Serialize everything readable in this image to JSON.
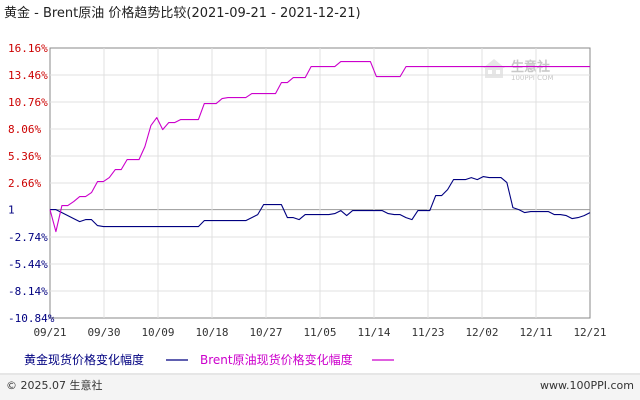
{
  "title": "黄金 - Brent原油 价格趋势比较(2021-09-21 - 2021-12-21)",
  "footer": {
    "copyright": "© 2025.07 生意社",
    "url": "www.100PPI.com"
  },
  "watermark": {
    "name": "生意社",
    "url": "100PPI.COM"
  },
  "colors": {
    "gold": "#000080",
    "brent": "#cc00cc",
    "zero_line": "#999999",
    "grid": "#e0e0e0",
    "frame": "#888888",
    "tick_red": "#cc0000",
    "tick_blue": "#000080"
  },
  "chart_data": {
    "type": "line",
    "title": "黄金 - Brent原油 价格趋势比较(2021-09-21 - 2021-12-21)",
    "ylim": [
      -10.84,
      16.16
    ],
    "y_ticks": [
      {
        "value": 16.16,
        "label": "16.16%"
      },
      {
        "value": 13.46,
        "label": "13.46%"
      },
      {
        "value": 10.76,
        "label": "10.76%"
      },
      {
        "value": 8.06,
        "label": "8.06%"
      },
      {
        "value": 5.36,
        "label": "5.36%"
      },
      {
        "value": 2.66,
        "label": "2.66%"
      },
      {
        "value": 0,
        "label": "1"
      },
      {
        "value": -2.74,
        "label": "-2.74%"
      },
      {
        "value": -5.44,
        "label": "-5.44%"
      },
      {
        "value": -8.14,
        "label": "-8.14%"
      },
      {
        "value": -10.84,
        "label": "-10.84%"
      }
    ],
    "x_ticks": [
      "09/21",
      "09/30",
      "10/09",
      "10/18",
      "10/27",
      "11/05",
      "11/14",
      "11/23",
      "12/02",
      "12/11",
      "12/21"
    ],
    "x_range": [
      0,
      91
    ],
    "grid": true,
    "legend_position": "bottom",
    "series": [
      {
        "name": "黄金现货价格变化幅度",
        "color": "#000080",
        "points": [
          [
            0,
            0.0
          ],
          [
            1,
            0.0
          ],
          [
            2,
            -0.3
          ],
          [
            3,
            -0.6
          ],
          [
            4,
            -0.9
          ],
          [
            5,
            -1.2
          ],
          [
            6,
            -1.0
          ],
          [
            7,
            -1.0
          ],
          [
            8,
            -1.6
          ],
          [
            9,
            -1.7
          ],
          [
            10,
            -1.7
          ],
          [
            11,
            -1.7
          ],
          [
            12,
            -1.7
          ],
          [
            13,
            -1.7
          ],
          [
            14,
            -1.7
          ],
          [
            15,
            -1.7
          ],
          [
            16,
            -1.7
          ],
          [
            17,
            -1.7
          ],
          [
            18,
            -1.7
          ],
          [
            19,
            -1.7
          ],
          [
            20,
            -1.7
          ],
          [
            21,
            -1.7
          ],
          [
            22,
            -1.7
          ],
          [
            23,
            -1.7
          ],
          [
            24,
            -1.7
          ],
          [
            25,
            -1.7
          ],
          [
            26,
            -1.1
          ],
          [
            27,
            -1.1
          ],
          [
            28,
            -1.1
          ],
          [
            29,
            -1.1
          ],
          [
            30,
            -1.1
          ],
          [
            31,
            -1.1
          ],
          [
            32,
            -1.1
          ],
          [
            33,
            -1.1
          ],
          [
            34,
            -0.8
          ],
          [
            35,
            -0.5
          ],
          [
            36,
            0.5
          ],
          [
            37,
            0.5
          ],
          [
            38,
            0.5
          ],
          [
            39,
            0.5
          ],
          [
            40,
            -0.8
          ],
          [
            41,
            -0.8
          ],
          [
            42,
            -1.0
          ],
          [
            43,
            -0.5
          ],
          [
            44,
            -0.5
          ],
          [
            45,
            -0.5
          ],
          [
            46,
            -0.5
          ],
          [
            47,
            -0.5
          ],
          [
            48,
            -0.4
          ],
          [
            49,
            -0.1
          ],
          [
            50,
            -0.6
          ],
          [
            51,
            -0.1
          ],
          [
            52,
            -0.1
          ],
          [
            53,
            -0.1
          ],
          [
            54,
            -0.1
          ],
          [
            55,
            -0.1
          ],
          [
            56,
            -0.1
          ],
          [
            57,
            -0.4
          ],
          [
            58,
            -0.5
          ],
          [
            59,
            -0.5
          ],
          [
            60,
            -0.8
          ],
          [
            61,
            -1.0
          ],
          [
            62,
            -0.1
          ],
          [
            63,
            -0.1
          ],
          [
            64,
            -0.1
          ],
          [
            65,
            1.4
          ],
          [
            66,
            1.4
          ],
          [
            67,
            2.0
          ],
          [
            68,
            3.0
          ],
          [
            69,
            3.0
          ],
          [
            70,
            3.0
          ],
          [
            71,
            3.2
          ],
          [
            72,
            3.0
          ],
          [
            73,
            3.3
          ],
          [
            74,
            3.2
          ],
          [
            75,
            3.2
          ],
          [
            76,
            3.2
          ],
          [
            77,
            2.7
          ],
          [
            78,
            0.2
          ],
          [
            79,
            0.0
          ],
          [
            80,
            -0.3
          ],
          [
            81,
            -0.2
          ],
          [
            82,
            -0.2
          ],
          [
            83,
            -0.2
          ],
          [
            84,
            -0.2
          ],
          [
            85,
            -0.5
          ],
          [
            86,
            -0.5
          ],
          [
            87,
            -0.6
          ],
          [
            88,
            -0.9
          ],
          [
            89,
            -0.8
          ],
          [
            90,
            -0.6
          ],
          [
            91,
            -0.3
          ]
        ]
      },
      {
        "name": "Brent原油现货价格变化幅度",
        "color": "#cc00cc",
        "points": [
          [
            0,
            0.0
          ],
          [
            1,
            -2.2
          ],
          [
            2,
            0.4
          ],
          [
            3,
            0.4
          ],
          [
            4,
            0.8
          ],
          [
            5,
            1.3
          ],
          [
            6,
            1.3
          ],
          [
            7,
            1.7
          ],
          [
            8,
            2.8
          ],
          [
            9,
            2.8
          ],
          [
            10,
            3.2
          ],
          [
            11,
            4.0
          ],
          [
            12,
            4.0
          ],
          [
            13,
            5.0
          ],
          [
            14,
            5.0
          ],
          [
            15,
            5.0
          ],
          [
            16,
            6.3
          ],
          [
            17,
            8.4
          ],
          [
            18,
            9.2
          ],
          [
            19,
            8.0
          ],
          [
            20,
            8.7
          ],
          [
            21,
            8.7
          ],
          [
            22,
            9.0
          ],
          [
            23,
            9.0
          ],
          [
            24,
            9.0
          ],
          [
            25,
            9.0
          ],
          [
            26,
            10.6
          ],
          [
            27,
            10.6
          ],
          [
            28,
            10.6
          ],
          [
            29,
            11.1
          ],
          [
            30,
            11.2
          ],
          [
            31,
            11.2
          ],
          [
            32,
            11.2
          ],
          [
            33,
            11.2
          ],
          [
            34,
            11.6
          ],
          [
            35,
            11.6
          ],
          [
            36,
            11.6
          ],
          [
            37,
            11.6
          ],
          [
            38,
            11.6
          ],
          [
            39,
            12.7
          ],
          [
            40,
            12.7
          ],
          [
            41,
            13.2
          ],
          [
            42,
            13.2
          ],
          [
            43,
            13.2
          ],
          [
            44,
            14.3
          ],
          [
            45,
            14.3
          ],
          [
            46,
            14.3
          ],
          [
            47,
            14.3
          ],
          [
            48,
            14.3
          ],
          [
            49,
            14.8
          ],
          [
            50,
            14.8
          ],
          [
            51,
            14.8
          ],
          [
            52,
            14.8
          ],
          [
            53,
            14.8
          ],
          [
            54,
            14.8
          ],
          [
            55,
            13.3
          ],
          [
            56,
            13.3
          ],
          [
            57,
            13.3
          ],
          [
            58,
            13.3
          ],
          [
            59,
            13.3
          ],
          [
            60,
            14.3
          ],
          [
            61,
            14.3
          ],
          [
            62,
            14.3
          ],
          [
            63,
            14.3
          ],
          [
            64,
            14.3
          ],
          [
            65,
            14.3
          ],
          [
            66,
            14.3
          ],
          [
            67,
            14.3
          ],
          [
            68,
            14.3
          ],
          [
            69,
            14.3
          ],
          [
            70,
            14.3
          ],
          [
            71,
            14.3
          ],
          [
            72,
            14.3
          ],
          [
            73,
            14.3
          ],
          [
            74,
            14.3
          ],
          [
            75,
            14.3
          ],
          [
            76,
            14.3
          ],
          [
            77,
            14.3
          ],
          [
            78,
            14.3
          ],
          [
            79,
            14.3
          ],
          [
            80,
            14.3
          ],
          [
            81,
            14.3
          ],
          [
            82,
            14.3
          ],
          [
            83,
            14.3
          ],
          [
            84,
            14.3
          ],
          [
            85,
            14.3
          ],
          [
            86,
            14.3
          ],
          [
            87,
            14.3
          ],
          [
            88,
            14.3
          ],
          [
            89,
            14.3
          ],
          [
            90,
            14.3
          ],
          [
            91,
            14.3
          ]
        ]
      }
    ]
  }
}
